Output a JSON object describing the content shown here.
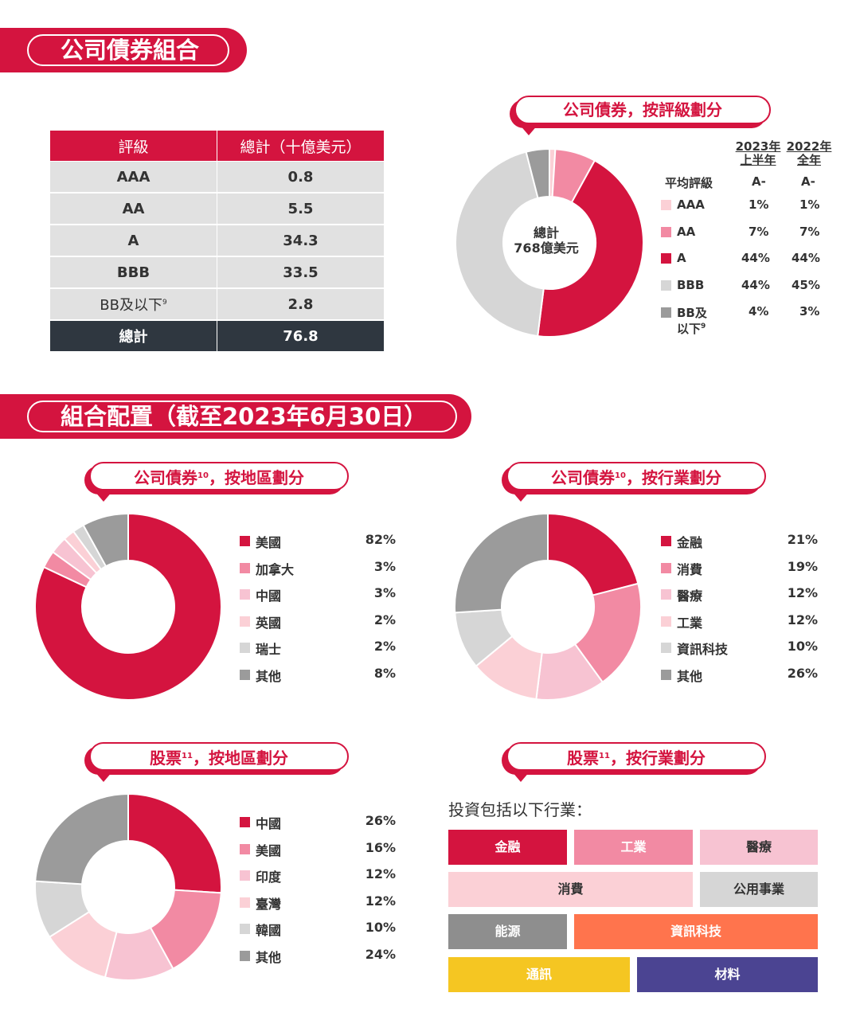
{
  "sections": {
    "portfolio_title": "公司債券組合",
    "allocation_title": "組合配置（截至2023年6月30日）"
  },
  "rating_table": {
    "headers": [
      "評級",
      "總計（十億美元）"
    ],
    "rows": [
      {
        "rating": "AAA",
        "total": "0.8"
      },
      {
        "rating": "AA",
        "total": "5.5"
      },
      {
        "rating": "A",
        "total": "34.3"
      },
      {
        "rating": "BBB",
        "total": "33.5"
      },
      {
        "rating": "BB及以下",
        "note": "9",
        "total": "2.8"
      }
    ],
    "total_row": {
      "label": "總計",
      "total": "76.8"
    }
  },
  "rating_chart": {
    "title": "公司債券，按評級劃分",
    "center_line1": "總計",
    "center_line2": "768億美元",
    "col_2023_line1": "2023年",
    "col_2023_line2": "上半年",
    "col_2022_line1": "2022年",
    "col_2022_line2": "全年",
    "avg_label": "平均評級",
    "avg_2023": "A-",
    "avg_2022": "A-",
    "items": [
      {
        "label": "AAA",
        "v2023": "1%",
        "v2022": "1%"
      },
      {
        "label": "AA",
        "v2023": "7%",
        "v2022": "7%"
      },
      {
        "label": "A",
        "v2023": "44%",
        "v2022": "44%"
      },
      {
        "label": "BBB",
        "v2023": "44%",
        "v2022": "45%"
      },
      {
        "label_line1": "BB及",
        "label_line2": "以下",
        "note": "9",
        "v2023": "4%",
        "v2022": "3%"
      }
    ]
  },
  "region_bonds": {
    "title_main": "公司債券",
    "title_note": "10",
    "title_suffix": "，按地區劃分",
    "items": [
      {
        "label": "美國",
        "value": "82%"
      },
      {
        "label": "加拿大",
        "value": "3%"
      },
      {
        "label": "中國",
        "value": "3%"
      },
      {
        "label": "英國",
        "value": "2%"
      },
      {
        "label": "瑞士",
        "value": "2%"
      },
      {
        "label": "其他",
        "value": "8%"
      }
    ]
  },
  "sector_bonds": {
    "title_main": "公司債券",
    "title_note": "10",
    "title_suffix": "，按行業劃分",
    "items": [
      {
        "label": "金融",
        "value": "21%"
      },
      {
        "label": "消費",
        "value": "19%"
      },
      {
        "label": "醫療",
        "value": "12%"
      },
      {
        "label": "工業",
        "value": "12%"
      },
      {
        "label": "資訊科技",
        "value": "10%"
      },
      {
        "label": "其他",
        "value": "26%"
      }
    ]
  },
  "region_equity": {
    "title_main": "股票",
    "title_note": "11",
    "title_suffix": "，按地區劃分",
    "items": [
      {
        "label": "中國",
        "value": "26%"
      },
      {
        "label": "美國",
        "value": "16%"
      },
      {
        "label": "印度",
        "value": "12%"
      },
      {
        "label": "臺灣",
        "value": "12%"
      },
      {
        "label": "韓國",
        "value": "10%"
      },
      {
        "label": "其他",
        "value": "24%"
      }
    ]
  },
  "sector_equity": {
    "title_main": "股票",
    "title_note": "11",
    "title_suffix": "，按行業劃分",
    "intro": "投資包括以下行業：",
    "sectors": [
      "金融",
      "工業",
      "醫療",
      "消費",
      "公用事業",
      "能源",
      "資訊科技",
      "通訊",
      "材料"
    ]
  },
  "chart_data": [
    {
      "type": "pie",
      "title": "公司債券，按評級劃分",
      "categories": [
        "AAA",
        "AA",
        "A",
        "BBB",
        "BB及以下"
      ],
      "series": [
        {
          "name": "2023年上半年",
          "values": [
            1,
            7,
            44,
            44,
            4
          ]
        },
        {
          "name": "2022年全年",
          "values": [
            1,
            7,
            44,
            45,
            3
          ]
        }
      ],
      "center_text": "總計 768億美元"
    },
    {
      "type": "pie",
      "title": "公司債券，按地區劃分",
      "categories": [
        "美國",
        "加拿大",
        "中國",
        "英國",
        "瑞士",
        "其他"
      ],
      "values": [
        82,
        3,
        3,
        2,
        2,
        8
      ]
    },
    {
      "type": "pie",
      "title": "公司債券，按行業劃分",
      "categories": [
        "金融",
        "消費",
        "醫療",
        "工業",
        "資訊科技",
        "其他"
      ],
      "values": [
        21,
        19,
        12,
        12,
        10,
        26
      ]
    },
    {
      "type": "pie",
      "title": "股票，按地區劃分",
      "categories": [
        "中國",
        "美國",
        "印度",
        "臺灣",
        "韓國",
        "其他"
      ],
      "values": [
        26,
        16,
        12,
        12,
        10,
        24
      ]
    }
  ],
  "colors": {
    "c1": "#d4143f",
    "c2": "#f28aa3",
    "c3": "#f7c3d2",
    "c4": "#fbd0d6",
    "c5": "#d6d6d6",
    "c6": "#9b9b9b",
    "energy": "#8e8e8e",
    "it": "#ff744d",
    "telecom": "#f5c622",
    "materials": "#4b4492"
  }
}
